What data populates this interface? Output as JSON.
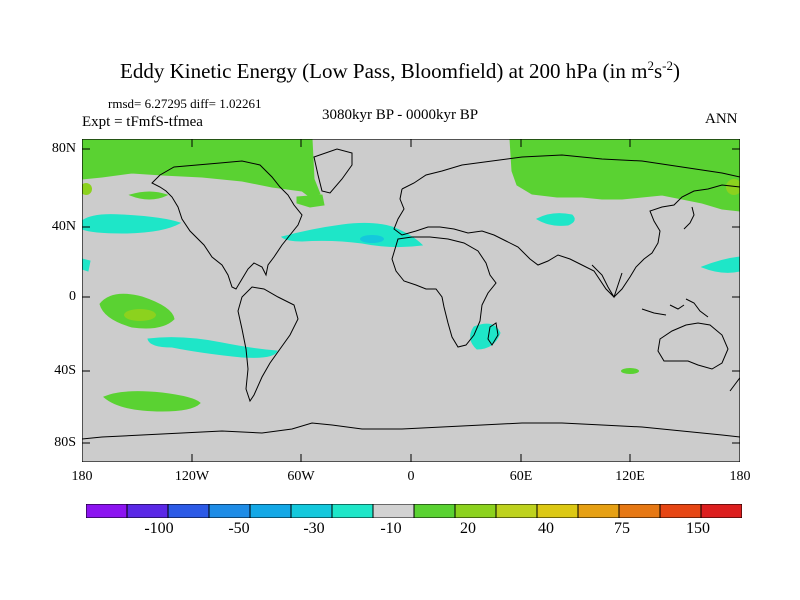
{
  "title": {
    "main": "Eddy Kinetic Energy (Low Pass, Bloomfield) at 200 hPa (in m",
    "sup1": "2",
    "s": "s",
    "sup2": "-2",
    "close": ")"
  },
  "stats": "rmsd= 6.27295 diff= 1.02261",
  "experiment": "Expt = tFmfS-tfmea",
  "period": "3080kyr BP - 0000kyr BP",
  "season": "ANN",
  "axes": {
    "y_ticks": [
      "80N",
      "40N",
      "0",
      "40S",
      "80S"
    ],
    "x_ticks": [
      "180",
      "120W",
      "60W",
      "0",
      "60E",
      "120E",
      "180"
    ]
  },
  "colorbar": {
    "colors": [
      "#8c14f0",
      "#5a28e6",
      "#2c5ae6",
      "#1e8ce6",
      "#14a8e6",
      "#14c8dc",
      "#1ee6c8",
      "#d2d2d2",
      "#5ad232",
      "#8cd21e",
      "#bed21e",
      "#dcc814",
      "#e6a014",
      "#e67814",
      "#e64614",
      "#dc1e1e"
    ],
    "labels": [
      "-100",
      "-50",
      "-30",
      "-10",
      "20",
      "40",
      "75",
      "150"
    ]
  },
  "colors": {
    "land_background": "#cccccc",
    "positive_fill": "#5ad232",
    "negative_fill": "#1ee6c8",
    "coastline": "#000000"
  }
}
